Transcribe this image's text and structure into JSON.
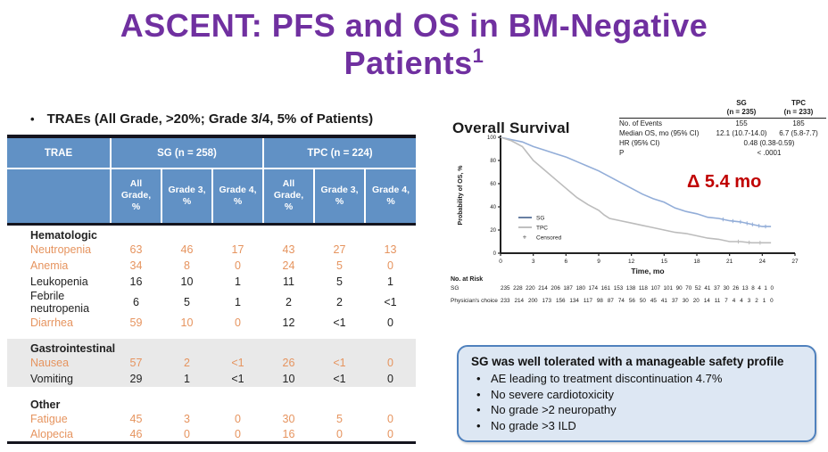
{
  "slide": {
    "title_line1": "ASCENT: PFS and OS in BM-Negative",
    "title_line2": "Patients",
    "title_superscript": "1",
    "bullet_marker": "•",
    "bullet": "TRAEs (All Grade, >20%; Grade 3/4, 5% of Patients)"
  },
  "colors": {
    "title_purple": "#7030a0",
    "header_blue": "#6191c5",
    "highlight_orange": "#e6945f",
    "delta_red": "#c00000",
    "sg_curve": "#92add8",
    "tpc_curve": "#bcbcbc",
    "sg_legend": "#44618c",
    "section_gray": "#e9e9e9",
    "box_fill": "#dde7f3",
    "box_border": "#4f81bd"
  },
  "trae_table": {
    "col1_header": "TRAE",
    "group_headers": [
      "SG (n = 258)",
      "TPC (n = 224)"
    ],
    "sub_headers": [
      "All Grade, %",
      "Grade 3, %",
      "Grade 4, %",
      "All Grade, %",
      "Grade 3, %",
      "Grade 4, %"
    ],
    "sections": [
      {
        "name": "Hematologic",
        "shaded": false,
        "rows": [
          {
            "label": "Neutropenia",
            "label_orange": true,
            "values": [
              "63",
              "46",
              "17",
              "43",
              "27",
              "13"
            ],
            "orange": [
              0,
              1,
              2,
              3,
              4,
              5
            ]
          },
          {
            "label": "Anemia",
            "label_orange": true,
            "values": [
              "34",
              "8",
              "0",
              "24",
              "5",
              "0"
            ],
            "orange": [
              0,
              1,
              2,
              3,
              4,
              5
            ]
          },
          {
            "label": "Leukopenia",
            "label_orange": false,
            "values": [
              "16",
              "10",
              "1",
              "11",
              "5",
              "1"
            ],
            "orange": []
          },
          {
            "label": "Febrile neutropenia",
            "label_orange": false,
            "values": [
              "6",
              "5",
              "1",
              "2",
              "2",
              "<1"
            ],
            "orange": []
          },
          {
            "label": "Diarrhea",
            "label_orange": true,
            "values": [
              "59",
              "10",
              "0",
              "12",
              "<1",
              "0"
            ],
            "orange": [
              0,
              1,
              2
            ]
          }
        ]
      },
      {
        "name": "Gastrointestinal",
        "shaded": true,
        "rows": [
          {
            "label": "Nausea",
            "label_orange": true,
            "values": [
              "57",
              "2",
              "<1",
              "26",
              "<1",
              "0"
            ],
            "orange": [
              0,
              1,
              2,
              3,
              4,
              5
            ]
          },
          {
            "label": "Vomiting",
            "label_orange": false,
            "values": [
              "29",
              "1",
              "<1",
              "10",
              "<1",
              "0"
            ],
            "orange": []
          }
        ]
      },
      {
        "name": "Other",
        "shaded": false,
        "rows": [
          {
            "label": "Fatigue",
            "label_orange": true,
            "values": [
              "45",
              "3",
              "0",
              "30",
              "5",
              "0"
            ],
            "orange": [
              0,
              1,
              2,
              3,
              4,
              5
            ]
          },
          {
            "label": "Alopecia",
            "label_orange": true,
            "values": [
              "46",
              "0",
              "0",
              "16",
              "0",
              "0"
            ],
            "orange": [
              0,
              1,
              2,
              3,
              4,
              5
            ]
          }
        ]
      }
    ]
  },
  "os_panel": {
    "title": "Overall Survival",
    "stats": {
      "col_headers": [
        {
          "name": "SG",
          "n": "(n = 235)"
        },
        {
          "name": "TPC",
          "n": "(n = 233)"
        }
      ],
      "rows": [
        {
          "label": "No. of Events",
          "sg": "155",
          "tpc": "185"
        },
        {
          "label": "Median OS, mo (95% CI)",
          "sg": "12.1 (10.7-14.0)",
          "tpc": "6.7 (5.8-7.7)"
        },
        {
          "label": "HR (95% CI)",
          "span": "0.48 (0.38-0.59)"
        },
        {
          "label": "P",
          "span": "< .0001"
        }
      ]
    },
    "delta_label": "Δ 5.4 mo",
    "legend": [
      {
        "label": "SG",
        "type": "line",
        "color": "#44618c"
      },
      {
        "label": "TPC",
        "type": "line",
        "color": "#b0b0b0"
      },
      {
        "label": "Censored",
        "type": "plus",
        "color": "#555555"
      }
    ],
    "at_risk": {
      "title": "No. at Risk",
      "rows": [
        {
          "label": "SG",
          "numbers": "235 228 220 214 206 187 180 174 161 153 138 118 107 101 90 70 52 41 37 30 26 13 8 4 1 0"
        },
        {
          "label": "Physician's choice",
          "numbers": "233 214 200 173 156 134 117 98 87 74 56 50 45 41 37 30 20 14 11 7 4 4 3 2 1 0"
        }
      ]
    }
  },
  "chart_data": {
    "type": "line",
    "title": "Overall Survival",
    "xlabel": "Time, mo",
    "ylabel": "Probability of OS, %",
    "xlim": [
      0,
      27
    ],
    "ylim": [
      0,
      100
    ],
    "xticks": [
      0,
      3,
      6,
      9,
      12,
      15,
      18,
      21,
      24,
      27
    ],
    "yticks": [
      0,
      20,
      40,
      60,
      80,
      100
    ],
    "grid": false,
    "legend_position": "lower-left",
    "series": [
      {
        "name": "SG",
        "color": "#92add8",
        "x": [
          0,
          1,
          2,
          3,
          4,
          5,
          6,
          7,
          8,
          9,
          10,
          11,
          12,
          13,
          14,
          15,
          16,
          17,
          18,
          19,
          20,
          21,
          22,
          23,
          24,
          24.8
        ],
        "y": [
          100,
          98,
          96,
          92,
          89,
          86,
          83,
          79,
          75,
          71,
          66,
          61,
          56,
          51,
          47,
          44,
          39,
          36,
          34,
          31,
          30,
          28,
          27,
          25,
          23,
          23
        ],
        "censor_x": [
          20.4,
          21.3,
          22.0,
          22.6,
          23.1,
          23.7,
          24.3
        ]
      },
      {
        "name": "TPC",
        "color": "#bcbcbc",
        "x": [
          0,
          1,
          2,
          2.5,
          3,
          4,
          5,
          6,
          7,
          8,
          9,
          9.5,
          10,
          11,
          12,
          13,
          14,
          15,
          16,
          17,
          18,
          19,
          20,
          21,
          22,
          23,
          24,
          24.8
        ],
        "y": [
          100,
          97,
          92,
          86,
          80,
          72,
          64,
          56,
          48,
          42,
          37,
          33,
          30,
          28,
          26,
          24,
          22,
          20,
          18,
          17,
          15,
          13,
          12,
          10,
          10,
          9,
          9,
          9
        ],
        "censor_x": [
          21.8,
          22.8,
          23.8
        ]
      }
    ],
    "annotations": [
      {
        "text": "Δ 5.4 mo",
        "color": "#c00000"
      }
    ]
  },
  "summary_box": {
    "heading": "SG was well tolerated with a manageable safety profile",
    "bullets": [
      "AE leading to treatment discontinuation 4.7%",
      "No severe cardiotoxicity",
      "No grade >2 neuropathy",
      "No grade >3 ILD"
    ]
  }
}
